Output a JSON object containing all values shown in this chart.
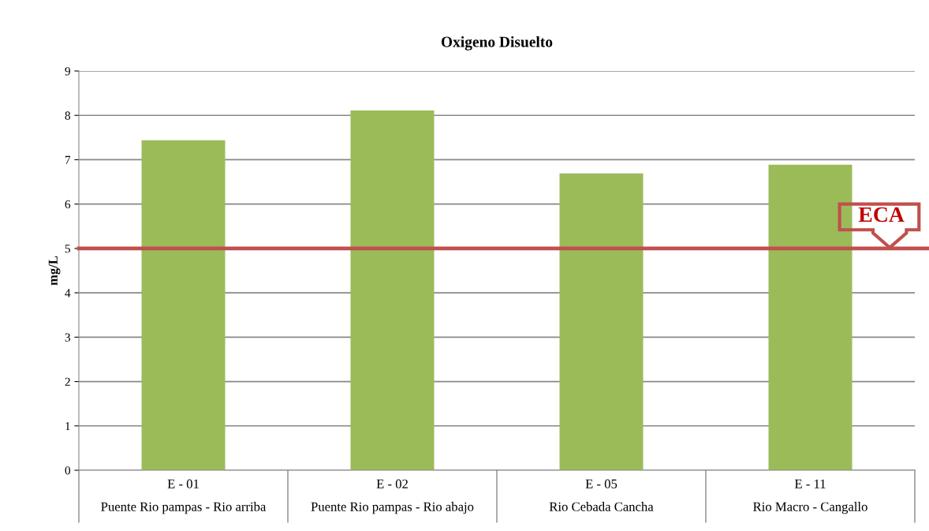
{
  "chart_data": {
    "type": "bar",
    "title": "Oxigeno Disuelto",
    "ylabel": "mg/L",
    "categories": [
      "E - 01\nPuente Rio pampas - Rio arriba",
      "E - 02\nPuente Rio pampas - Rio abajo",
      "E - 05\nRio Cebada Cancha",
      "E - 11\nRio Macro - Cangallo"
    ],
    "values": [
      7.44,
      8.11,
      6.69,
      6.89
    ],
    "color": "#9bbb59",
    "ylim": [
      0,
      9
    ],
    "yticks": [
      0,
      1,
      2,
      3,
      4,
      5,
      6,
      7,
      8,
      9
    ],
    "grid": "y",
    "ref_lines": [
      {
        "axis": "y",
        "value": 5,
        "label": "ECA",
        "color": "#c0504d"
      }
    ]
  }
}
